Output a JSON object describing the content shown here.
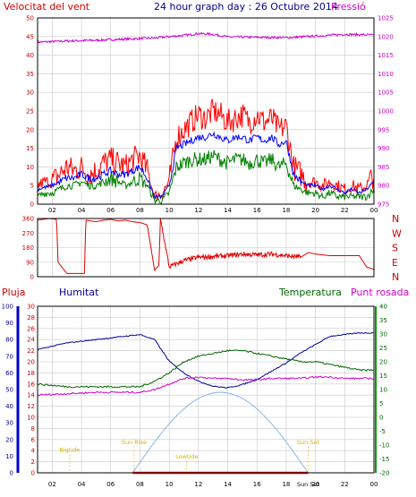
{
  "colors": {
    "frame": "#000000",
    "grid": "#c8c8c8",
    "wind": "#ff0000",
    "gust_band": "#008000",
    "avg_line": "#0000ff",
    "pressure": "#cc00cc",
    "direction": "#e00000",
    "rain": "#ff0000",
    "humidity": "#000099",
    "temperature": "#006600",
    "dewpoint": "#cc00cc",
    "sun": "#87b6ea",
    "tide_label": "#d4b400"
  },
  "header": {
    "left": "Velocitat del vent",
    "center": "24 hour graph day : 26 Octubre 2014",
    "right": "Pressió"
  },
  "x_ticks": [
    "02",
    "04",
    "06",
    "08",
    "10",
    "12",
    "14",
    "16",
    "18",
    "20",
    "22",
    "00"
  ],
  "chart_data": [
    {
      "type": "line",
      "xlim": [
        1,
        24
      ],
      "left_axis": {
        "ylim": [
          0,
          50
        ],
        "ticks": [
          "0",
          "5",
          "10",
          "15",
          "20",
          "25",
          "30",
          "35",
          "40",
          "45",
          "50"
        ]
      },
      "right_axis": {
        "ylim": [
          975,
          1025
        ],
        "ticks": [
          "975",
          "980",
          "985",
          "990",
          "995",
          "1000",
          "1005",
          "1010",
          "1015",
          "1020",
          "1025"
        ]
      },
      "series": [
        {
          "name": "Velocitat del vent",
          "x": [
            1,
            1.5,
            2,
            2.5,
            3,
            3.5,
            4,
            4.5,
            5,
            5.5,
            6,
            6.5,
            7,
            7.5,
            8,
            8.5,
            9,
            9.5,
            10,
            10.5,
            11,
            11.5,
            12,
            12.5,
            13,
            13.5,
            14,
            14.5,
            15,
            15.5,
            16,
            16.5,
            17,
            17.5,
            18,
            18.5,
            19,
            19.5,
            20,
            20.5,
            21,
            21.5,
            22,
            22.5,
            23,
            23.5,
            24
          ],
          "y": [
            5,
            6,
            6,
            8,
            10,
            9,
            10,
            8,
            9,
            11,
            12,
            11,
            10,
            12,
            13,
            9,
            2,
            3,
            6,
            18,
            20,
            22,
            24,
            23,
            25,
            24,
            22,
            23,
            24,
            22,
            24,
            22,
            23,
            20,
            21,
            10,
            8,
            6,
            6,
            5,
            6,
            5,
            4,
            5,
            4,
            5,
            8
          ]
        },
        {
          "name": "",
          "x": [
            1,
            1.5,
            2,
            2.5,
            3,
            3.5,
            4,
            4.5,
            5,
            5.5,
            6,
            6.5,
            7,
            7.5,
            8,
            8.5,
            9,
            9.5,
            10,
            10.5,
            11,
            11.5,
            12,
            12.5,
            13,
            13.5,
            14,
            14.5,
            15,
            15.5,
            16,
            16.5,
            17,
            17.5,
            18,
            18.5,
            19,
            19.5,
            20,
            20.5,
            21,
            21.5,
            22,
            22.5,
            23,
            23.5,
            24
          ],
          "y": [
            2,
            3,
            3,
            4,
            5,
            5,
            6,
            5,
            5,
            6,
            7,
            6,
            5,
            6,
            7,
            5,
            1,
            1,
            3,
            10,
            11,
            12,
            12,
            12,
            13,
            12,
            11,
            12,
            12,
            11,
            12,
            11,
            12,
            10,
            11,
            5,
            4,
            3,
            3,
            2,
            3,
            2,
            2,
            2,
            2,
            2,
            4
          ]
        },
        {
          "name": "",
          "x": [
            1,
            1.5,
            2,
            2.5,
            3,
            3.5,
            4,
            4.5,
            5,
            5.5,
            6,
            6.5,
            7,
            7.5,
            8,
            8.5,
            9,
            9.5,
            10,
            10.5,
            11,
            11.5,
            12,
            12.5,
            13,
            13.5,
            14,
            14.5,
            15,
            15.5,
            16,
            16.5,
            17,
            17.5,
            18,
            18.5,
            19,
            19.5,
            20,
            20.5,
            21,
            21.5,
            22,
            22.5,
            23,
            23.5,
            24
          ],
          "y": [
            4,
            4.5,
            5,
            6,
            7,
            7,
            8,
            7,
            7,
            8,
            9,
            8,
            8,
            9,
            10,
            7,
            2,
            2,
            5,
            15,
            16,
            17,
            18,
            18,
            19,
            18,
            17,
            18,
            18,
            17,
            18,
            17,
            18,
            16,
            17,
            8,
            6,
            5,
            5,
            4,
            5,
            4,
            3,
            4,
            3,
            4,
            6
          ]
        },
        {
          "name": "Pressió",
          "axis": "right",
          "x": [
            1,
            3,
            5,
            7,
            9,
            10,
            11,
            12,
            13,
            14,
            16,
            18,
            20,
            22,
            24
          ],
          "y": [
            1018.5,
            1018.8,
            1019,
            1019.3,
            1019.6,
            1020,
            1020.3,
            1020.8,
            1020.6,
            1019.9,
            1019.8,
            1019.7,
            1020.1,
            1020.6,
            1020.4
          ]
        }
      ]
    },
    {
      "type": "line",
      "xlim": [
        1,
        24
      ],
      "ylim": [
        0,
        360
      ],
      "y_ticks": [
        "0",
        "90",
        "180",
        "270",
        "360"
      ],
      "side_labels": [
        "N",
        "W",
        "S",
        "E",
        "N"
      ],
      "series": [
        {
          "name": "",
          "x": [
            1,
            1.8,
            2.3,
            2.4,
            3,
            3.8,
            4.2,
            4.3,
            5,
            5.5,
            6,
            6.5,
            7,
            7.5,
            8,
            8.5,
            9,
            9.3,
            9.4,
            10,
            11,
            12,
            13,
            14,
            15,
            16,
            17,
            18,
            19,
            19.5,
            20,
            21,
            22,
            23,
            23.5,
            24
          ],
          "y": [
            350,
            360,
            355,
            90,
            20,
            20,
            20,
            350,
            340,
            350,
            355,
            345,
            350,
            340,
            335,
            320,
            40,
            70,
            360,
            60,
            100,
            120,
            125,
            130,
            140,
            135,
            140,
            130,
            120,
            150,
            140,
            130,
            130,
            130,
            60,
            45
          ]
        }
      ]
    },
    {
      "type": "line",
      "xlim": [
        1,
        24
      ],
      "left_axes": [
        {
          "name": "Pluja",
          "ylim": [
            0,
            30
          ],
          "ticks": [
            "0",
            "2",
            "4",
            "6",
            "8",
            "10",
            "12",
            "14",
            "16",
            "18",
            "20",
            "22",
            "24",
            "26",
            "28",
            "30"
          ]
        },
        {
          "name": "Humitat",
          "ylim": [
            0,
            100
          ],
          "ticks": [
            "0",
            "10",
            "20",
            "30",
            "40",
            "50",
            "60",
            "70",
            "80",
            "90",
            "100"
          ]
        }
      ],
      "right_axis": {
        "ylim": [
          -20,
          40
        ],
        "ticks": [
          "-20",
          "-15",
          "-10",
          "-5",
          "0",
          "5",
          "10",
          "15",
          "20",
          "25",
          "30",
          "35",
          "40"
        ]
      },
      "series_labels": {
        "rain": "Pluja",
        "humidity": "Humitat",
        "temperature": "Temperatura",
        "dewpoint": "Punt rosada"
      },
      "series": [
        {
          "name": "Humitat",
          "x": [
            1,
            3,
            5,
            7,
            8,
            9,
            10,
            11,
            12,
            13,
            14,
            15,
            16,
            17,
            18,
            19,
            20,
            21,
            22,
            23,
            24
          ],
          "y": [
            74,
            78,
            80,
            82,
            83,
            80,
            67,
            60,
            55,
            52,
            51,
            53,
            56,
            61,
            66,
            72,
            77,
            82,
            83,
            84,
            84
          ]
        },
        {
          "name": "Temperatura",
          "x": [
            1,
            3,
            5,
            7,
            8,
            9,
            10,
            11,
            12,
            13,
            14,
            15,
            16,
            17,
            18,
            19,
            20,
            21,
            22,
            23,
            24
          ],
          "y": [
            12,
            11,
            11,
            11,
            11,
            13,
            16,
            20,
            22,
            23,
            24,
            24,
            23,
            22,
            21,
            20,
            20,
            19,
            18,
            17,
            17
          ]
        },
        {
          "name": "Punt rosada",
          "x": [
            1,
            3,
            5,
            7,
            8,
            9,
            10,
            11,
            12,
            13,
            14,
            15,
            16,
            17,
            18,
            19,
            20,
            21,
            22,
            23,
            24
          ],
          "y": [
            8,
            8.5,
            9,
            9,
            9,
            10,
            12,
            14,
            14.5,
            14,
            14,
            13.5,
            13.5,
            14,
            14,
            14,
            14.5,
            14.5,
            14,
            14,
            14
          ]
        },
        {
          "name": "Pluja",
          "x": [
            7.5,
            19.5
          ],
          "y": [
            0,
            0
          ]
        }
      ],
      "sun_curve": {
        "rise": 7.5,
        "set": 19.5,
        "peak_x": 13.5,
        "peak_y": 14.5
      },
      "annotations": [
        {
          "text": "Bigtide",
          "x": 3.2,
          "y": 3.8
        },
        {
          "text": "Sun Rise",
          "x": 7.6,
          "y": 5.2
        },
        {
          "text": "Lowtide",
          "x": 11.2,
          "y": 2.6
        },
        {
          "text": "Sun Set",
          "x": 19.5,
          "y": 5.2
        },
        {
          "text": "Sun Set",
          "x": 19.5,
          "y": -2.5,
          "under_axis": true
        }
      ]
    }
  ]
}
